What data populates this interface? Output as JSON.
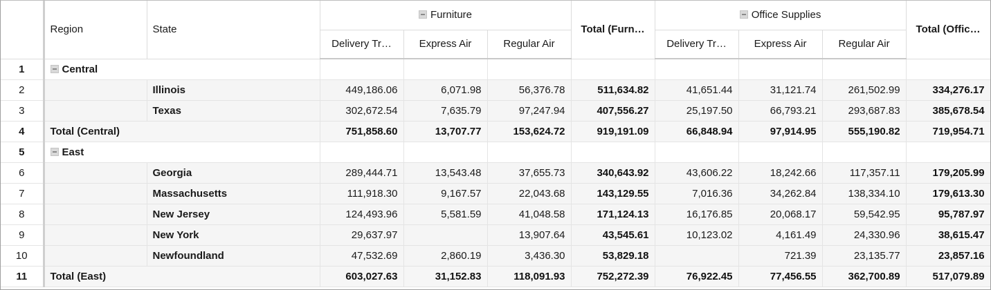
{
  "header": {
    "region_label": "Region",
    "state_label": "State",
    "groups": [
      {
        "label": "Furniture"
      },
      {
        "label": "Office Supplies"
      }
    ],
    "subcolumns": [
      "Delivery Tr…",
      "Express Air",
      "Regular Air"
    ],
    "total_furniture_label": "Total (Furn…",
    "total_office_label": "Total (Offic…"
  },
  "rows": [
    {
      "num": "1",
      "kind": "group",
      "label": "Central"
    },
    {
      "num": "2",
      "kind": "data",
      "state": "Illinois",
      "values": [
        "449,186.06",
        "6,071.98",
        "56,376.78",
        "511,634.82",
        "41,651.44",
        "31,121.74",
        "261,502.99",
        "334,276.17"
      ]
    },
    {
      "num": "3",
      "kind": "data",
      "state": "Texas",
      "values": [
        "302,672.54",
        "7,635.79",
        "97,247.94",
        "407,556.27",
        "25,197.50",
        "66,793.21",
        "293,687.83",
        "385,678.54"
      ]
    },
    {
      "num": "4",
      "kind": "total",
      "label": "Total (Central)",
      "values": [
        "751,858.60",
        "13,707.77",
        "153,624.72",
        "919,191.09",
        "66,848.94",
        "97,914.95",
        "555,190.82",
        "719,954.71"
      ]
    },
    {
      "num": "5",
      "kind": "group",
      "label": "East"
    },
    {
      "num": "6",
      "kind": "data",
      "state": "Georgia",
      "values": [
        "289,444.71",
        "13,543.48",
        "37,655.73",
        "340,643.92",
        "43,606.22",
        "18,242.66",
        "117,357.11",
        "179,205.99"
      ]
    },
    {
      "num": "7",
      "kind": "data",
      "state": "Massachusetts",
      "values": [
        "111,918.30",
        "9,167.57",
        "22,043.68",
        "143,129.55",
        "7,016.36",
        "34,262.84",
        "138,334.10",
        "179,613.30"
      ]
    },
    {
      "num": "8",
      "kind": "data",
      "state": "New Jersey",
      "values": [
        "124,493.96",
        "5,581.59",
        "41,048.58",
        "171,124.13",
        "16,176.85",
        "20,068.17",
        "59,542.95",
        "95,787.97"
      ]
    },
    {
      "num": "9",
      "kind": "data",
      "state": "New York",
      "values": [
        "29,637.97",
        "",
        "13,907.64",
        "43,545.61",
        "10,123.02",
        "4,161.49",
        "24,330.96",
        "38,615.47"
      ]
    },
    {
      "num": "10",
      "kind": "data",
      "state": "Newfoundland",
      "values": [
        "47,532.69",
        "2,860.19",
        "3,436.30",
        "53,829.18",
        "",
        "721.39",
        "23,135.77",
        "23,857.16"
      ]
    },
    {
      "num": "11",
      "kind": "total",
      "label": "Total (East)",
      "values": [
        "603,027.63",
        "31,152.83",
        "118,091.93",
        "752,272.39",
        "76,922.45",
        "77,456.55",
        "362,700.89",
        "517,079.89"
      ]
    }
  ]
}
